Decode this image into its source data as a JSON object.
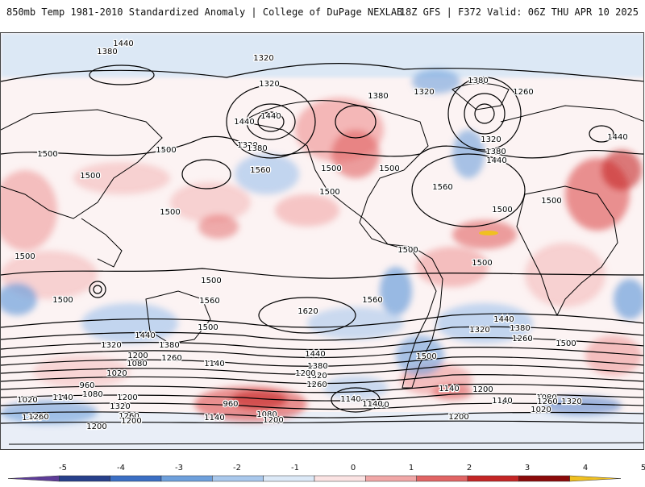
{
  "header": {
    "title_left": "850mb Temp 1981-2010 Standardized Anomaly | College of DuPage NEXLAB",
    "title_right": "18Z GFS | F372 Valid: 06Z THU APR 10 2025"
  },
  "colorbar": {
    "ticks": [
      "-5",
      "-4",
      "-3",
      "-2",
      "-1",
      "0",
      "1",
      "2",
      "3",
      "4",
      "5"
    ],
    "colors": [
      "#5e3c99",
      "#27408b",
      "#3b6fc4",
      "#6ea0dc",
      "#a9c8ec",
      "#dce9f7",
      "#fbe3e3",
      "#f1a7a7",
      "#e16464",
      "#c42525",
      "#8b0a0a",
      "#f0c020"
    ]
  },
  "map": {
    "contour_labels": [
      "1440",
      "1380",
      "1380",
      "1320",
      "1320",
      "1320",
      "1380",
      "1440",
      "1440",
      "1380",
      "1320",
      "1380",
      "1260",
      "1320",
      "1380",
      "1440",
      "1440",
      "1500",
      "1500",
      "1500",
      "1500",
      "1500",
      "1560",
      "1500",
      "1560",
      "1500",
      "1500",
      "1500",
      "1500",
      "1500",
      "1500",
      "1500",
      "1500",
      "1560",
      "1620",
      "1560",
      "1500",
      "1440",
      "1380",
      "1320",
      "1260",
      "1200",
      "1140",
      "1080",
      "1020",
      "960",
      "1080",
      "1140",
      "1020",
      "1200",
      "1320",
      "1260",
      "1200",
      "1440",
      "1380",
      "1320",
      "1260",
      "1200",
      "1500",
      "1440",
      "1380",
      "1320",
      "1260",
      "1500",
      "1140",
      "1200",
      "1080",
      "1020",
      "1320",
      "1260",
      "1140",
      "1200",
      "960",
      "1080",
      "1140",
      "1200",
      "1140",
      "1080",
      "1200",
      "1140",
      "1020",
      "1200",
      "1260",
      "1320",
      "1380",
      "1500",
      "1500",
      "1320"
    ]
  }
}
